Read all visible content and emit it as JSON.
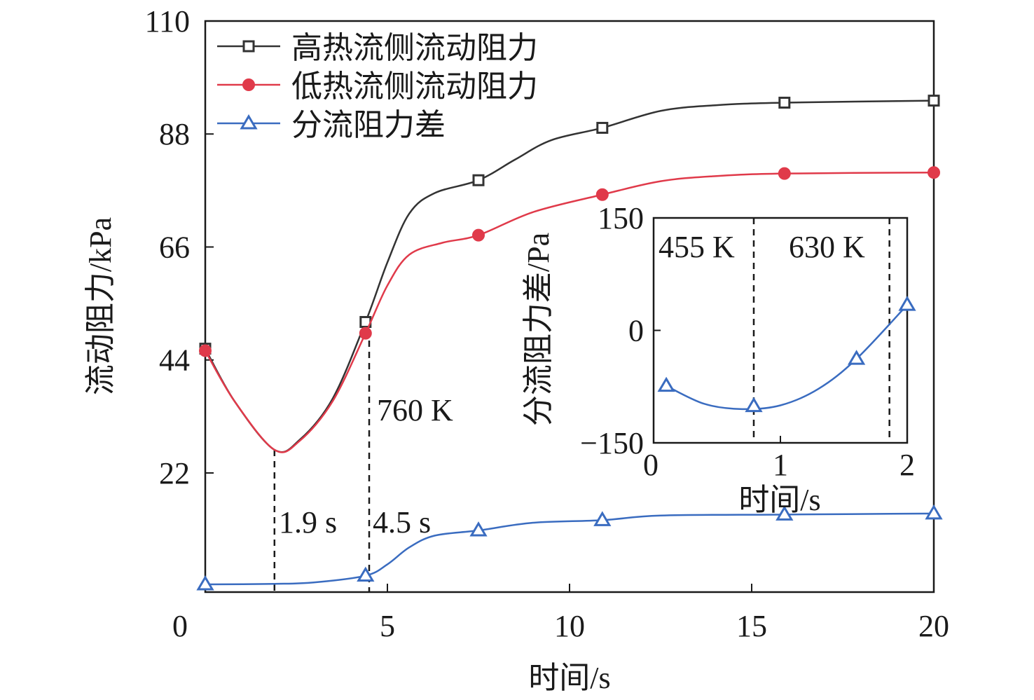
{
  "chart_data": [
    {
      "type": "line",
      "xlabel": "时间/s",
      "ylabel": "流动阻力/kPa",
      "xlim": [
        0,
        20
      ],
      "ylim": [
        -1.2,
        110
      ],
      "xticks": [
        0,
        5,
        10,
        15,
        20
      ],
      "yticks": [
        22,
        44,
        66,
        88,
        110
      ],
      "legend_position": "top-left",
      "series": [
        {
          "name": "高热流侧流动阻力",
          "color": "#333333",
          "marker": "square",
          "x": [
            0,
            4.4,
            7.5,
            10.9,
            15.9,
            20
          ],
          "y": [
            46.2,
            51.4,
            79,
            89.2,
            94.1,
            94.5
          ],
          "curve": [
            [
              0,
              46.2
            ],
            [
              0.8,
              36
            ],
            [
              1.9,
              26.5
            ],
            [
              2.6,
              28.5
            ],
            [
              3.5,
              36.5
            ],
            [
              4.4,
              51.4
            ],
            [
              5,
              63
            ],
            [
              5.6,
              72.5
            ],
            [
              6.3,
              76.5
            ],
            [
              7.5,
              79
            ],
            [
              8.5,
              83
            ],
            [
              9.5,
              86.8
            ],
            [
              10.9,
              89.2
            ],
            [
              12.5,
              92.5
            ],
            [
              14,
              93.6
            ],
            [
              15.9,
              94.1
            ],
            [
              20,
              94.5
            ]
          ]
        },
        {
          "name": "低热流侧流动阻力",
          "color": "#e03a4a",
          "marker": "circle",
          "x": [
            0,
            4.4,
            7.5,
            10.9,
            15.9,
            20
          ],
          "y": [
            45.8,
            49.2,
            68.3,
            76.2,
            80.3,
            80.5
          ],
          "curve": [
            [
              0,
              45.8
            ],
            [
              0.8,
              36
            ],
            [
              1.9,
              26.5
            ],
            [
              2.6,
              28.3
            ],
            [
              3.5,
              36
            ],
            [
              4.4,
              49.2
            ],
            [
              5,
              58.5
            ],
            [
              5.6,
              64.5
            ],
            [
              6.5,
              66.8
            ],
            [
              7.5,
              68.3
            ],
            [
              9,
              72.8
            ],
            [
              10.9,
              76.2
            ],
            [
              12.5,
              78.8
            ],
            [
              14,
              79.8
            ],
            [
              15.9,
              80.3
            ],
            [
              20,
              80.5
            ]
          ]
        },
        {
          "name": "分流阻力差",
          "color": "#3a6cc0",
          "marker": "triangle",
          "x": [
            0,
            4.4,
            7.5,
            10.9,
            15.9,
            20
          ],
          "y": [
            0.3,
            2.0,
            10.8,
            12.8,
            13.9,
            14.1
          ],
          "curve": [
            [
              0,
              0.3
            ],
            [
              1.9,
              0.4
            ],
            [
              3,
              0.7
            ],
            [
              4.4,
              2.0
            ],
            [
              5,
              4.2
            ],
            [
              5.6,
              7.5
            ],
            [
              6.3,
              9.8
            ],
            [
              7.5,
              10.8
            ],
            [
              9,
              12.3
            ],
            [
              10.9,
              12.8
            ],
            [
              12.5,
              13.7
            ],
            [
              15.9,
              13.9
            ],
            [
              20,
              14.1
            ]
          ]
        }
      ],
      "vlines": [
        {
          "x": 1.9,
          "label": "1.9 s"
        },
        {
          "x": 4.5,
          "label": "4.5 s"
        }
      ],
      "annotations": [
        "760 K"
      ]
    },
    {
      "type": "line",
      "xlabel": "时间/s",
      "ylabel": "分流阻力差/Pa",
      "xlim": [
        0,
        2
      ],
      "ylim": [
        -150,
        150
      ],
      "xticks": [
        0,
        1,
        2
      ],
      "yticks": [
        -150,
        0,
        150
      ],
      "ytick_labels": [
        "−150",
        "0",
        "150"
      ],
      "series": [
        {
          "name": "分流阻力差",
          "color": "#3a6cc0",
          "marker": "triangle",
          "x": [
            0.1,
            0.79,
            1.6,
            2.0
          ],
          "y": [
            -74,
            -101,
            -38,
            34
          ],
          "curve": [
            [
              0.1,
              -74
            ],
            [
              0.4,
              -98
            ],
            [
              0.7,
              -105
            ],
            [
              1.0,
              -100
            ],
            [
              1.3,
              -78
            ],
            [
              1.6,
              -38
            ],
            [
              2.0,
              34
            ]
          ]
        }
      ],
      "vlines": [
        {
          "x": 0.79,
          "label": "455 K"
        },
        {
          "x": 1.86,
          "label": "630 K"
        }
      ]
    }
  ]
}
